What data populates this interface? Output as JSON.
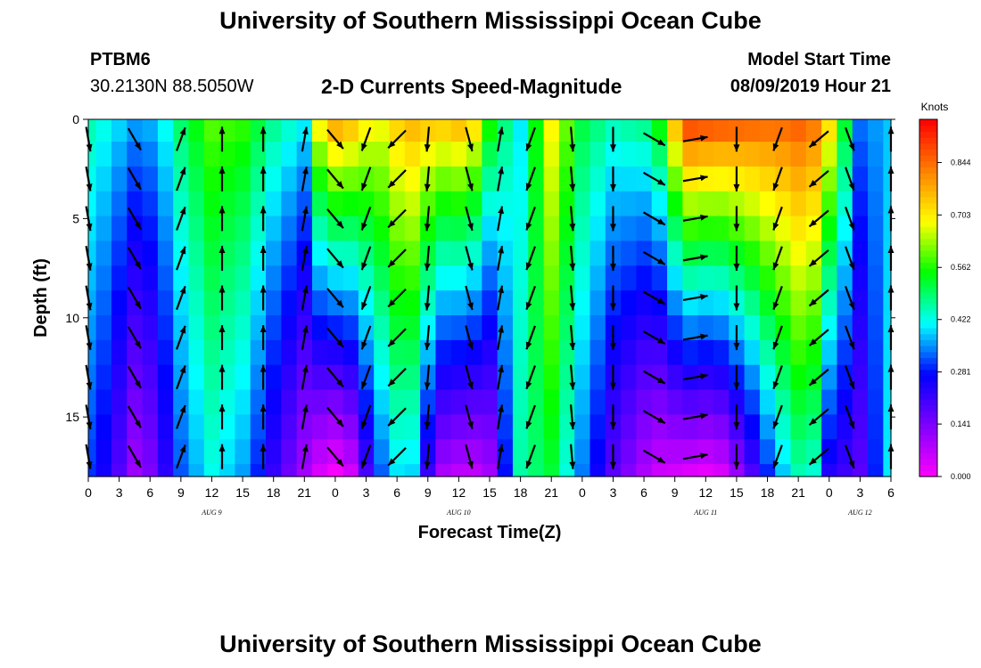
{
  "header": {
    "title": "University of Southern Mississippi Ocean Cube",
    "station_id": "PTBM6",
    "coordinates": "30.2130N 88.5050W",
    "subtitle": "2-D Currents Speed-Magnitude",
    "model_label": "Model Start Time",
    "model_time": "08/09/2019 Hour 21"
  },
  "footer": {
    "title": "University of Southern Mississippi Ocean Cube"
  },
  "chart_data": {
    "type": "heatmap",
    "title": "2-D Currents Speed-Magnitude",
    "xlabel": "Forecast Time(Z)",
    "ylabel": "Depth (ft)",
    "x_tick_labels": [
      "0",
      "3",
      "6",
      "9",
      "12",
      "15",
      "18",
      "21",
      "0",
      "3",
      "6",
      "9",
      "12",
      "15",
      "18",
      "21",
      "0",
      "3",
      "6",
      "9",
      "12",
      "15",
      "18",
      "21",
      "0",
      "3",
      "6"
    ],
    "day_labels": [
      "AUG 9",
      "AUG 10",
      "AUG 11",
      "AUG 12"
    ],
    "day_label_hours": [
      12,
      36,
      60,
      75
    ],
    "x_range_hours": [
      0,
      78
    ],
    "ylim": [
      0,
      18
    ],
    "y_ticks": [
      0,
      5,
      10,
      15
    ],
    "depths_ft": [
      0.5,
      1.75,
      3.0,
      4.25,
      5.5,
      6.75,
      8.0,
      9.25,
      10.5,
      11.75,
      13.0,
      14.25,
      15.5,
      16.75,
      18.0
    ],
    "hours": [
      0,
      1.5,
      3,
      4.5,
      6,
      7.5,
      9,
      10.5,
      12,
      13.5,
      15,
      16.5,
      18,
      19.5,
      21,
      22.5,
      24,
      25.5,
      27,
      28.5,
      30,
      31.5,
      33,
      34.5,
      36,
      37.5,
      39,
      40.5,
      42,
      43.5,
      45,
      46.5,
      48,
      49.5,
      51,
      52.5,
      54,
      55.5,
      57,
      58.5,
      60,
      61.5,
      63,
      64.5,
      66,
      67.5,
      69,
      70.5,
      72,
      73.5,
      75,
      76.5,
      78
    ],
    "speed_colorbar": {
      "unit": "Knots",
      "min": 0.0,
      "max": 0.96,
      "tick_values": [
        0.0,
        0.141,
        0.281,
        0.422,
        0.562,
        0.703,
        0.844
      ],
      "tick_labels": [
        "0.000",
        "0.141",
        "0.281",
        "0.422",
        "0.562",
        "0.703",
        "0.844"
      ],
      "colors": [
        "#ff00ff",
        "#8000ff",
        "#0000ff",
        "#00ffff",
        "#00ff00",
        "#ffff00",
        "#ff8000",
        "#ff0000"
      ]
    },
    "speed_knots_keypoints": [
      {
        "hour": 0,
        "surface": 0.46,
        "bottom": 0.3
      },
      {
        "hour": 2,
        "surface": 0.42,
        "bottom": 0.24
      },
      {
        "hour": 5,
        "surface": 0.36,
        "bottom": 0.08
      },
      {
        "hour": 7,
        "surface": 0.4,
        "bottom": 0.2
      },
      {
        "hour": 9,
        "surface": 0.5,
        "bottom": 0.32
      },
      {
        "hour": 12,
        "surface": 0.6,
        "bottom": 0.42
      },
      {
        "hour": 15,
        "surface": 0.58,
        "bottom": 0.36
      },
      {
        "hour": 18,
        "surface": 0.48,
        "bottom": 0.22
      },
      {
        "hour": 21,
        "surface": 0.42,
        "bottom": 0.1
      },
      {
        "hour": 23,
        "surface": 0.82,
        "bottom": 0.02
      },
      {
        "hour": 25,
        "surface": 0.8,
        "bottom": 0.0
      },
      {
        "hour": 28,
        "surface": 0.68,
        "bottom": 0.3
      },
      {
        "hour": 31,
        "surface": 0.78,
        "bottom": 0.45
      },
      {
        "hour": 34,
        "surface": 0.76,
        "bottom": 0.1
      },
      {
        "hour": 37,
        "surface": 0.8,
        "bottom": 0.06
      },
      {
        "hour": 39,
        "surface": 0.58,
        "bottom": 0.1
      },
      {
        "hour": 42,
        "surface": 0.4,
        "bottom": 0.46
      },
      {
        "hour": 45,
        "surface": 0.7,
        "bottom": 0.52
      },
      {
        "hour": 48,
        "surface": 0.52,
        "bottom": 0.34
      },
      {
        "hour": 51,
        "surface": 0.46,
        "bottom": 0.18
      },
      {
        "hour": 55,
        "surface": 0.5,
        "bottom": 0.06
      },
      {
        "hour": 58,
        "surface": 0.92,
        "bottom": 0.04
      },
      {
        "hour": 61,
        "surface": 0.9,
        "bottom": 0.02
      },
      {
        "hour": 64,
        "surface": 0.88,
        "bottom": 0.16
      },
      {
        "hour": 67,
        "surface": 0.86,
        "bottom": 0.36
      },
      {
        "hour": 70,
        "surface": 0.88,
        "bottom": 0.5
      },
      {
        "hour": 72,
        "surface": 0.74,
        "bottom": 0.24
      },
      {
        "hour": 75,
        "surface": 0.34,
        "bottom": 0.18
      },
      {
        "hour": 78,
        "surface": 0.38,
        "bottom": 0.4
      }
    ],
    "current_vectors": [
      {
        "hour": 0,
        "direction_deg": 170
      },
      {
        "hour": 4.5,
        "direction_deg": 150
      },
      {
        "hour": 9,
        "direction_deg": 20
      },
      {
        "hour": 13,
        "direction_deg": 0
      },
      {
        "hour": 17,
        "direction_deg": 0
      },
      {
        "hour": 21,
        "direction_deg": 10
      },
      {
        "hour": 24,
        "direction_deg": 140
      },
      {
        "hour": 27,
        "direction_deg": 200
      },
      {
        "hour": 30,
        "direction_deg": 225
      },
      {
        "hour": 33,
        "direction_deg": 185
      },
      {
        "hour": 37,
        "direction_deg": 165
      },
      {
        "hour": 40,
        "direction_deg": 10
      },
      {
        "hour": 43,
        "direction_deg": 200
      },
      {
        "hour": 47,
        "direction_deg": 175
      },
      {
        "hour": 51,
        "direction_deg": 180
      },
      {
        "hour": 55,
        "direction_deg": 120
      },
      {
        "hour": 59,
        "direction_deg": 80
      },
      {
        "hour": 63,
        "direction_deg": 180
      },
      {
        "hour": 67,
        "direction_deg": 200
      },
      {
        "hour": 71,
        "direction_deg": 230
      },
      {
        "hour": 74,
        "direction_deg": 160
      },
      {
        "hour": 78,
        "direction_deg": 0
      }
    ]
  }
}
